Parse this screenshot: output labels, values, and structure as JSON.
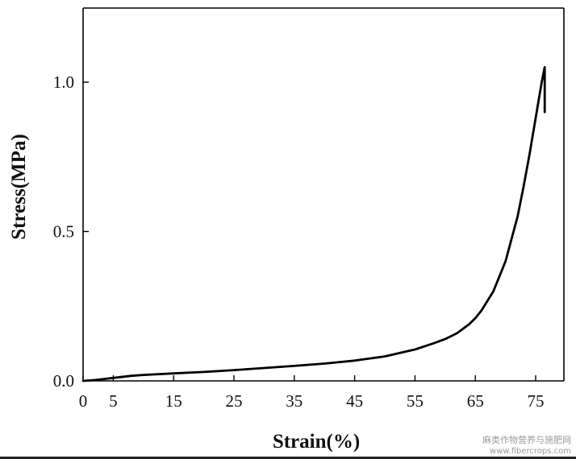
{
  "chart_data": {
    "type": "line",
    "xlabel": "Strain(%)",
    "ylabel": "Stress(MPa)",
    "xlim": [
      0,
      80
    ],
    "ylim": [
      0,
      1.25
    ],
    "x_ticks": [
      0,
      5,
      15,
      25,
      35,
      45,
      55,
      65,
      75
    ],
    "y_ticks": [
      0.0,
      0.5,
      1.0
    ],
    "y_tick_labels": [
      "0.0",
      "0.5",
      "1.0"
    ],
    "grid": false,
    "series": [
      {
        "x": [
          0,
          2,
          5,
          8,
          10,
          15,
          20,
          25,
          30,
          35,
          40,
          45,
          50,
          55,
          58,
          60,
          62,
          64,
          65,
          66,
          68,
          70,
          72,
          73,
          74,
          75,
          76,
          76.5,
          76.5
        ],
        "y": [
          0,
          0.003,
          0.01,
          0.017,
          0.02,
          0.025,
          0.03,
          0.036,
          0.043,
          0.05,
          0.058,
          0.068,
          0.082,
          0.105,
          0.125,
          0.14,
          0.16,
          0.19,
          0.21,
          0.235,
          0.3,
          0.4,
          0.55,
          0.65,
          0.76,
          0.88,
          1.0,
          1.05,
          0.9
        ],
        "color": "#000000"
      }
    ]
  },
  "watermark": {
    "line1": "麻类作物营养与施肥网",
    "line2": "www.fibercrops.com"
  }
}
